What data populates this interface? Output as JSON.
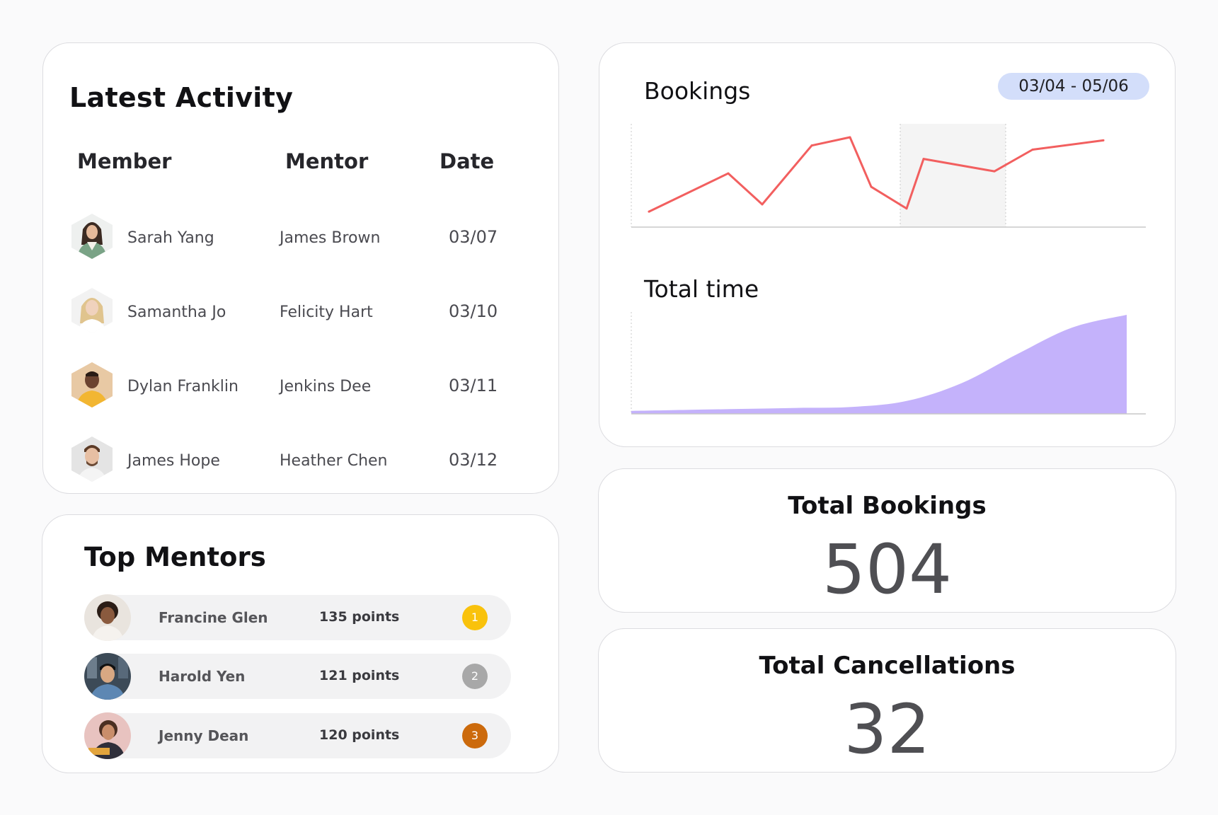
{
  "latest_activity": {
    "title": "Latest Activity",
    "columns": {
      "member": "Member",
      "mentor": "Mentor",
      "date": "Date"
    },
    "rows": [
      {
        "member": "Sarah Yang",
        "mentor": "James Brown",
        "date": "03/07"
      },
      {
        "member": "Samantha Jo",
        "mentor": "Felicity Hart",
        "date": "03/10"
      },
      {
        "member": "Dylan Franklin",
        "mentor": "Jenkins Dee",
        "date": "03/11"
      },
      {
        "member": "James Hope",
        "mentor": "Heather Chen",
        "date": "03/12"
      }
    ]
  },
  "top_mentors": {
    "title": "Top Mentors",
    "rows": [
      {
        "name": "Francine Glen",
        "points": "135 points",
        "rank": "1",
        "rank_color": "#f9c20c"
      },
      {
        "name": "Harold Yen",
        "points": "121 points",
        "rank": "2",
        "rank_color": "#a8a8a8"
      },
      {
        "name": "Jenny Dean",
        "points": "120 points",
        "rank": "3",
        "rank_color": "#cc6a0c"
      }
    ]
  },
  "charts_panel": {
    "date_range": "03/04 - 05/06",
    "bookings_title": "Bookings",
    "total_time_title": "Total time"
  },
  "chart_data": [
    {
      "type": "line",
      "title": "Bookings",
      "color": "#f25f5f",
      "highlight_band_color": "#f4f4f4",
      "grid": false,
      "values": [
        0.15,
        0.52,
        0.22,
        0.79,
        0.87,
        0.39,
        0.18,
        0.66,
        0.54,
        0.75,
        0.84
      ]
    },
    {
      "type": "area",
      "title": "Total time",
      "color": "#c4b2fb",
      "grid": false,
      "values": [
        0.03,
        0.04,
        0.05,
        0.06,
        0.07,
        0.13,
        0.31,
        0.6,
        0.87,
        1.0
      ]
    }
  ],
  "stats": {
    "total_bookings_label": "Total Bookings",
    "total_bookings_value": "504",
    "total_cancellations_label": "Total Cancellations",
    "total_cancellations_value": "32"
  },
  "colors": {
    "card_border": "#dcdce0",
    "page_bg": "#fafafb",
    "date_range_bg": "#d3defa"
  }
}
